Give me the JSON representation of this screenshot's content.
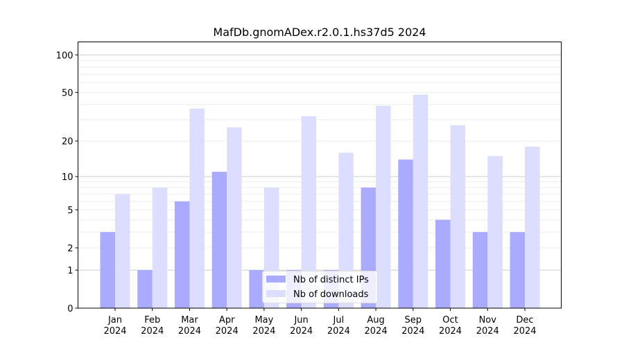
{
  "chart_data": {
    "type": "bar",
    "title": "MafDb.gnomADex.r2.0.1.hs37d5 2024",
    "xlabel": "",
    "ylabel": "",
    "yscale": "symlog (log10(1+y))",
    "ylim": [
      0,
      127
    ],
    "yticks": [
      0,
      1,
      2,
      5,
      10,
      20,
      50,
      100
    ],
    "grid": true,
    "legend_position": "bottom-center",
    "categories": [
      "Jan\n2024",
      "Feb\n2024",
      "Mar\n2024",
      "Apr\n2024",
      "May\n2024",
      "Jun\n2024",
      "Jul\n2024",
      "Aug\n2024",
      "Sep\n2024",
      "Oct\n2024",
      "Nov\n2024",
      "Dec\n2024"
    ],
    "series": [
      {
        "name": "Nb of distinct IPs",
        "color": "#aaaaff",
        "values": [
          3,
          1,
          6,
          11,
          1,
          1,
          1,
          8,
          14,
          4,
          3,
          3
        ]
      },
      {
        "name": "Nb of downloads",
        "color": "#ddddff",
        "values": [
          7,
          8,
          37,
          26,
          8,
          32,
          16,
          39,
          48,
          27,
          15,
          18
        ]
      }
    ]
  }
}
